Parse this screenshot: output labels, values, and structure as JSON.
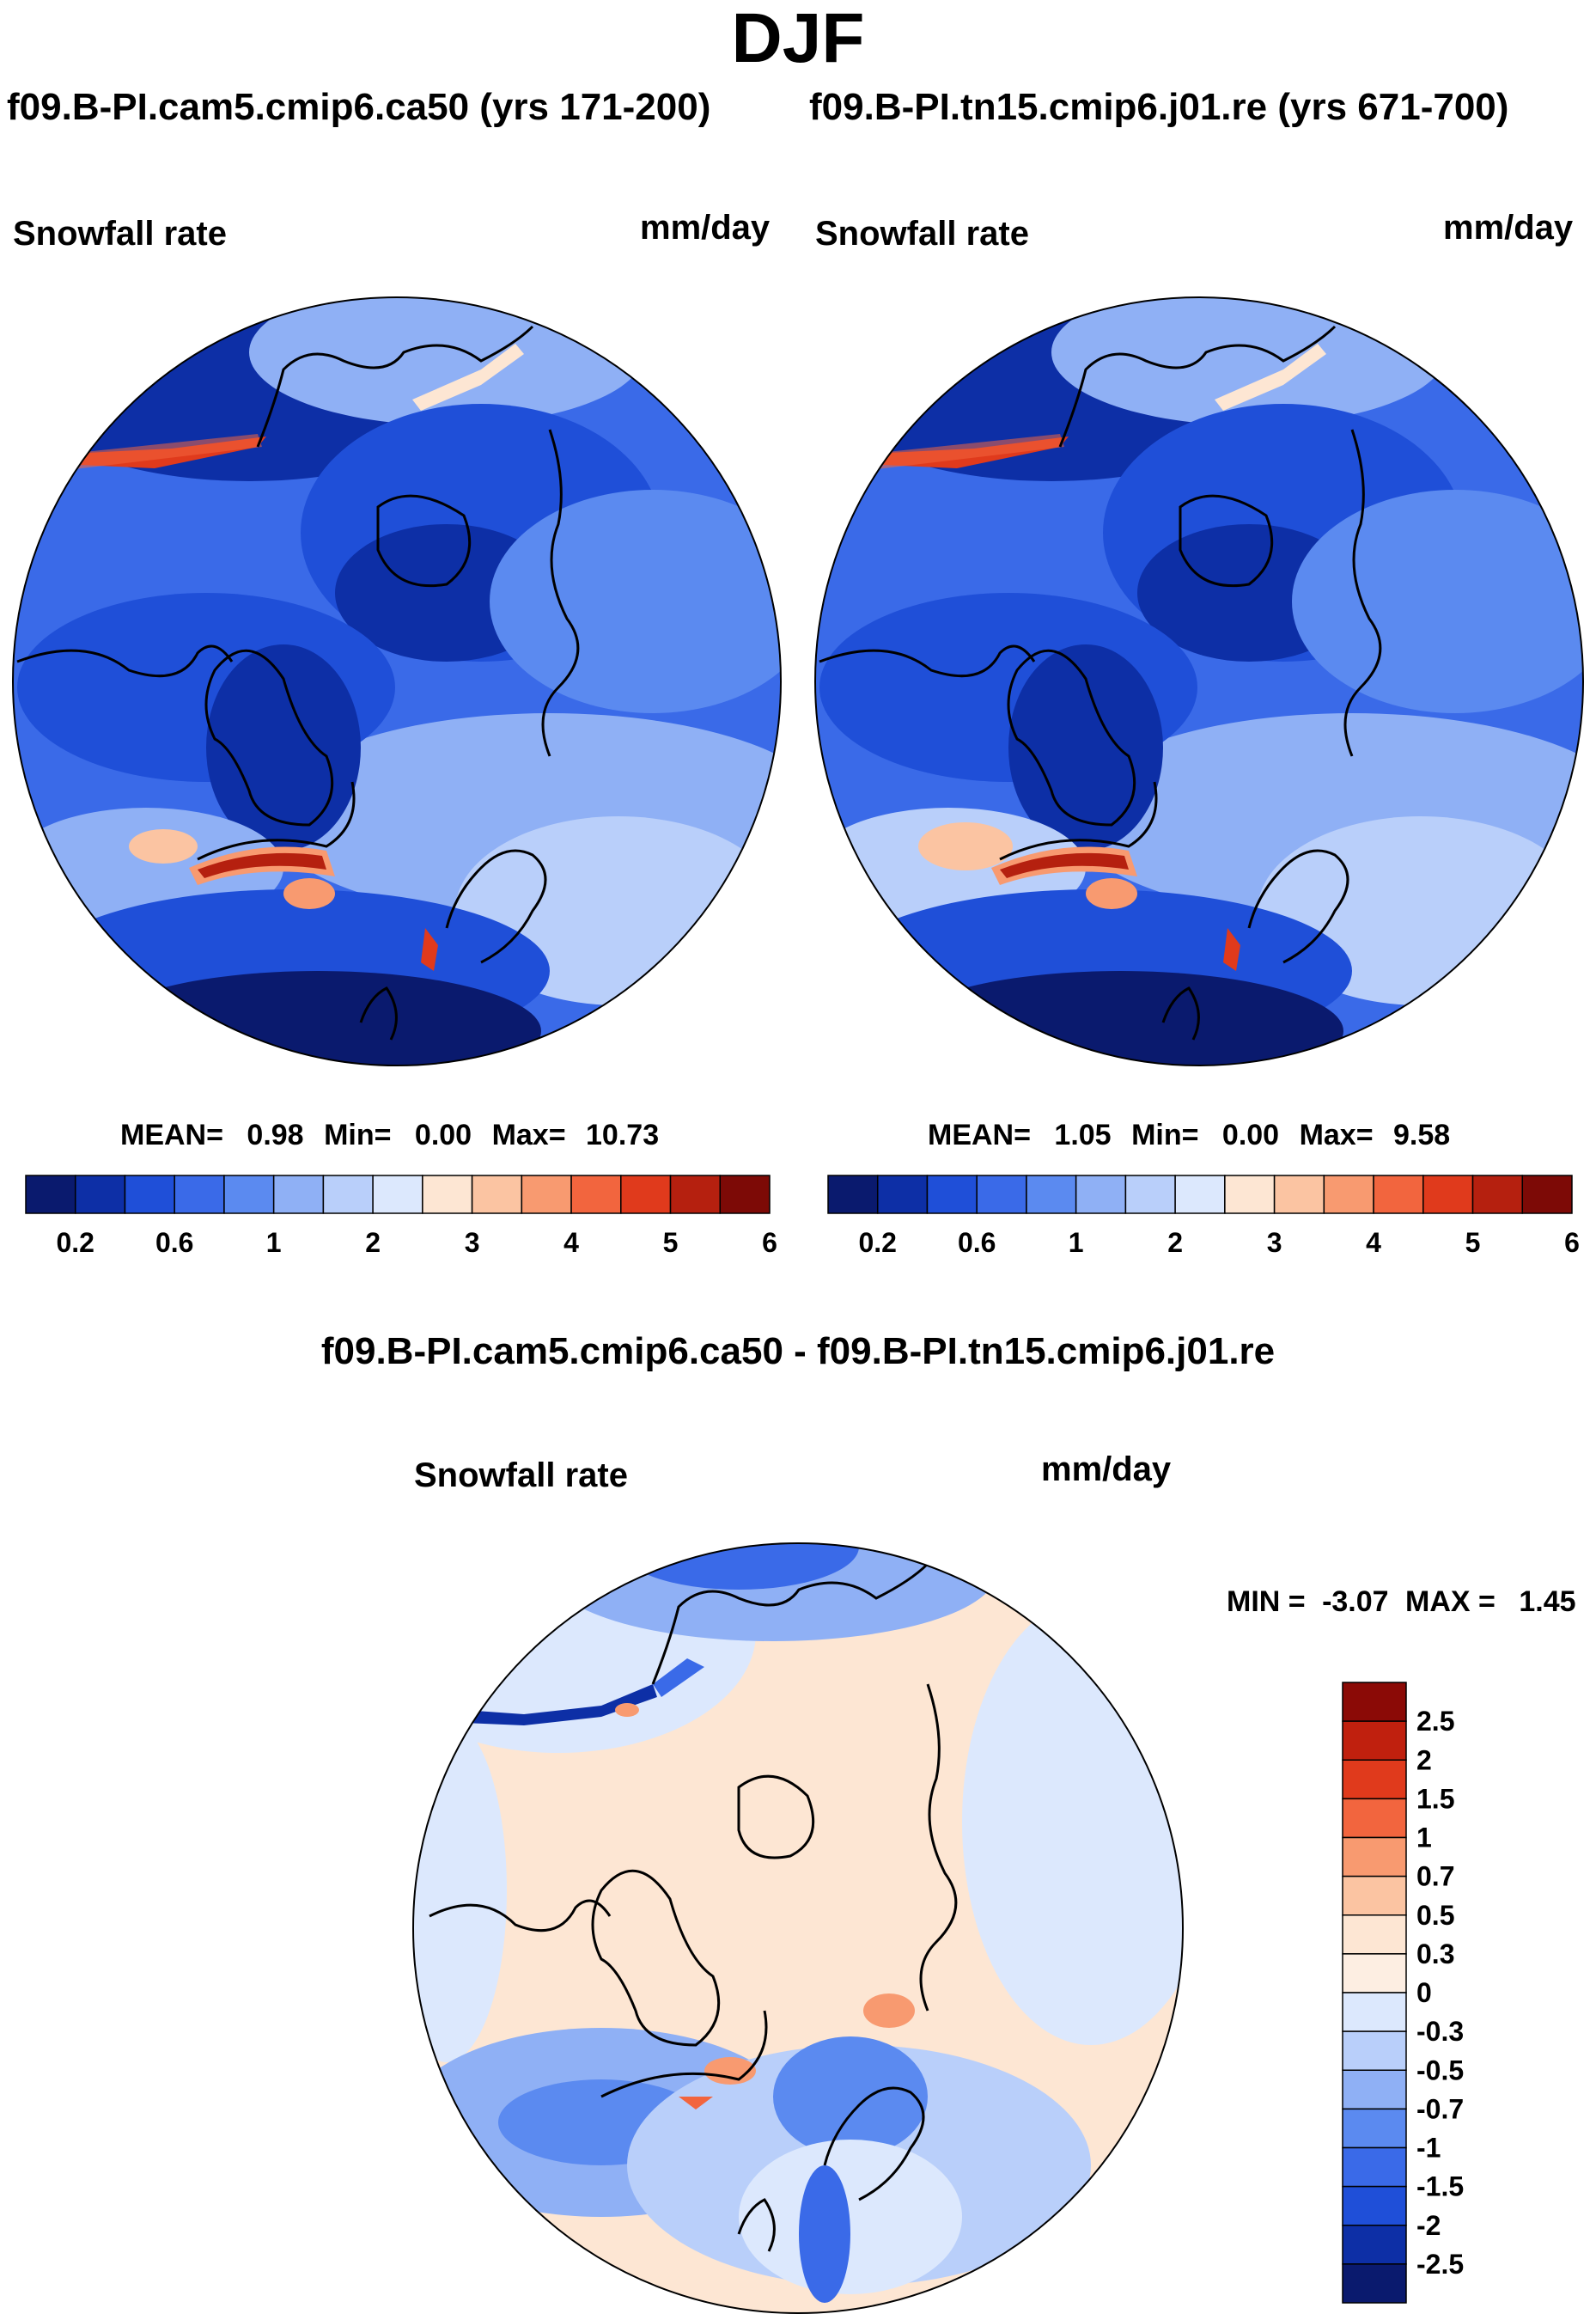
{
  "header": {
    "season": "DJF",
    "case_left": "f09.B-PI.cam5.cmip6.ca50 (yrs 171-200)",
    "case_right": "f09.B-PI.tn15.cmip6.j01.re (yrs 671-700)",
    "diff_title": "f09.B-PI.cam5.cmip6.ca50 - f09.B-PI.tn15.cmip6.j01.re"
  },
  "chart_data": [
    {
      "type": "heatmap",
      "projection": "north-polar-stereographic",
      "title_left": "Snowfall rate",
      "title_right": "mm/day",
      "stats": {
        "mean_label": "MEAN=",
        "mean": "0.98",
        "min_label": "Min=",
        "min": "0.00",
        "max_label": "Max=",
        "max": "10.73"
      },
      "colorbar": {
        "orientation": "horizontal",
        "levels": [
          0.2,
          0.4,
          0.6,
          0.8,
          1,
          1.5,
          2,
          2.5,
          3,
          3.5,
          4,
          4.5,
          5,
          5.5,
          6
        ],
        "tick_labels": [
          "0.2",
          "0.6",
          "1",
          "2",
          "3",
          "4",
          "5",
          "6"
        ],
        "colors": [
          "#0a1a6e",
          "#0d2fa6",
          "#1f4fd8",
          "#3a6ae8",
          "#5b8af0",
          "#8fb0f5",
          "#b9cffa",
          "#dce8fd",
          "#fde6d3",
          "#fbc4a2",
          "#f89a70",
          "#f2653e",
          "#e03a1c",
          "#b5200f",
          "#7d0a06"
        ]
      }
    },
    {
      "type": "heatmap",
      "projection": "north-polar-stereographic",
      "title_left": "Snowfall rate",
      "title_right": "mm/day",
      "stats": {
        "mean_label": "MEAN=",
        "mean": "1.05",
        "min_label": "Min=",
        "min": "0.00",
        "max_label": "Max=",
        "max": "9.58"
      },
      "colorbar": {
        "orientation": "horizontal",
        "levels": [
          0.2,
          0.4,
          0.6,
          0.8,
          1,
          1.5,
          2,
          2.5,
          3,
          3.5,
          4,
          4.5,
          5,
          5.5,
          6
        ],
        "tick_labels": [
          "0.2",
          "0.6",
          "1",
          "2",
          "3",
          "4",
          "5",
          "6"
        ],
        "colors": [
          "#0a1a6e",
          "#0d2fa6",
          "#1f4fd8",
          "#3a6ae8",
          "#5b8af0",
          "#8fb0f5",
          "#b9cffa",
          "#dce8fd",
          "#fde6d3",
          "#fbc4a2",
          "#f89a70",
          "#f2653e",
          "#e03a1c",
          "#b5200f",
          "#7d0a06"
        ]
      }
    },
    {
      "type": "heatmap",
      "projection": "north-polar-stereographic",
      "title_left": "Snowfall rate",
      "title_right": "mm/day",
      "stats": {
        "min_label": "MIN =",
        "min": "-3.07",
        "max_label": "MAX =",
        "max": "1.45"
      },
      "colorbar": {
        "orientation": "vertical",
        "tick_labels": [
          "2.5",
          "2",
          "1.5",
          "1",
          "0.7",
          "0.5",
          "0.3",
          "0",
          "-0.3",
          "-0.5",
          "-0.7",
          "-1",
          "-1.5",
          "-2",
          "-2.5"
        ],
        "colors": [
          "#8b0a06",
          "#c0200e",
          "#e03a1c",
          "#f2653e",
          "#f89a70",
          "#fbc4a2",
          "#fde6d3",
          "#fdeee2",
          "#dce8fd",
          "#b9cffa",
          "#8fb0f5",
          "#5b8af0",
          "#3a6ae8",
          "#1f4fd8",
          "#0d2fa6",
          "#0a1a6e"
        ]
      }
    }
  ]
}
